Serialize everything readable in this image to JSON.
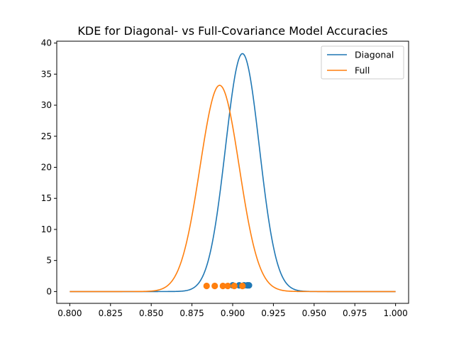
{
  "chart_data": {
    "type": "line",
    "title": "KDE for Diagonal- vs Full-Covariance Model Accuracies",
    "xlabel": "",
    "ylabel": "",
    "xlim": [
      0.792,
      1.008
    ],
    "ylim": [
      -1.9,
      40.3
    ],
    "x_ticks": [
      0.8,
      0.825,
      0.85,
      0.875,
      0.9,
      0.925,
      0.95,
      0.975,
      1.0
    ],
    "x_tick_labels": [
      "0.800",
      "0.825",
      "0.850",
      "0.875",
      "0.900",
      "0.925",
      "0.950",
      "0.975",
      "1.000"
    ],
    "y_ticks": [
      0,
      5,
      10,
      15,
      20,
      25,
      30,
      35,
      40
    ],
    "y_tick_labels": [
      "0",
      "5",
      "10",
      "15",
      "20",
      "25",
      "30",
      "35",
      "40"
    ],
    "grid": false,
    "legend_position": "top-right",
    "x_range": [
      0.8,
      1.0
    ],
    "series": [
      {
        "name": "Diagonal",
        "color": "#1f77b4",
        "kde_peak_x": 0.906,
        "kde_peak_y": 38.3,
        "kde_sigma": 0.0104,
        "samples": [
          0.9,
          0.904,
          0.907,
          0.909,
          0.91
        ],
        "sample_y": 1.0
      },
      {
        "name": "Full",
        "color": "#ff7f0e",
        "kde_peak_x": 0.892,
        "kde_peak_y": 33.2,
        "kde_sigma": 0.012,
        "samples": [
          0.884,
          0.889,
          0.894,
          0.897,
          0.901,
          0.906
        ],
        "sample_y": 0.9
      }
    ]
  }
}
